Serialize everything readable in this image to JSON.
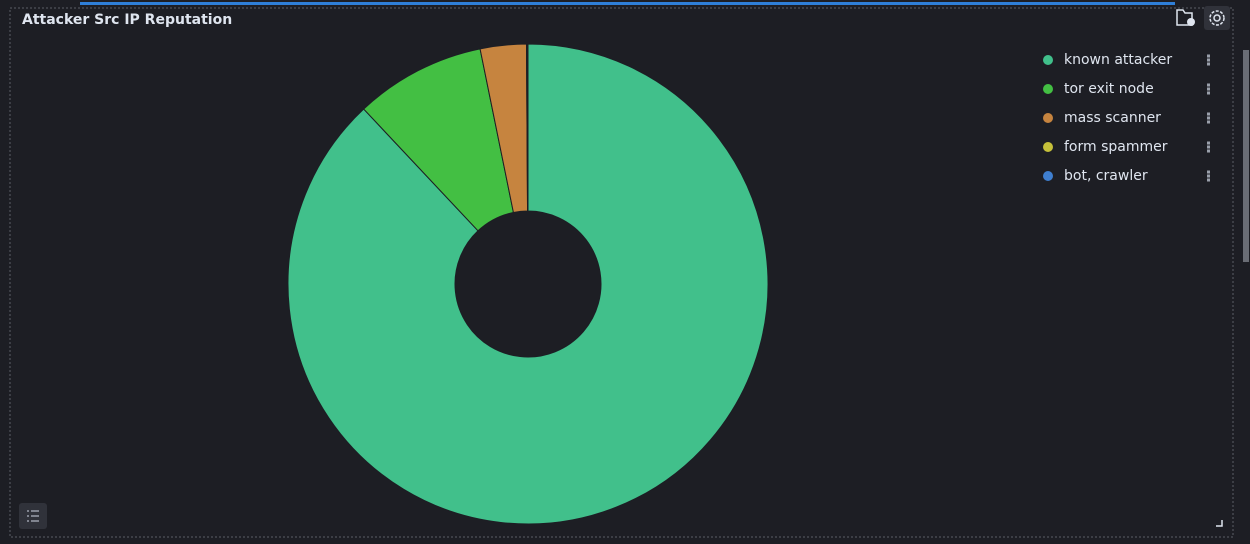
{
  "chart_data": {
    "type": "pie",
    "title": "Attacker Src IP Reputation",
    "categories": [
      "known attacker",
      "tor exit node",
      "mass scanner",
      "form spammer",
      "bot, crawler"
    ],
    "values": [
      88,
      8.8,
      3.1,
      0.05,
      0.05
    ],
    "colors": [
      "#41c08b",
      "#43bf43",
      "#c6843f",
      "#c5c03a",
      "#3f7fd0"
    ],
    "donut": true
  }
}
